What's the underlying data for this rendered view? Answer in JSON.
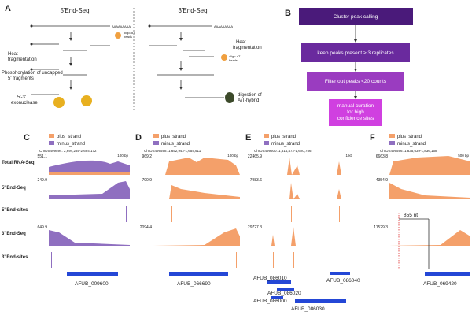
{
  "panel_a": {
    "letter": "A",
    "left_title": "5'End-Seq",
    "right_title": "3'End-Seq",
    "left_labels": [
      "Heat",
      "fragmentation",
      "Phosphorylation of uncapped",
      "5' fragments",
      "5'-3'",
      "exonuclease"
    ],
    "right_labels": [
      "Heat",
      "fragmentation",
      "oligo-dT",
      "beads",
      "digestion of",
      "A/T-hybrid"
    ],
    "bead_label": [
      "oligo-dT",
      "beads"
    ]
  },
  "panel_b": {
    "letter": "B",
    "steps": [
      "Cluster peak calling",
      "keep peaks present ≥ 3 replicates",
      "Filter out peaks <20 counts",
      [
        "manual curation",
        "for high",
        "confidence sites"
      ]
    ]
  },
  "row_labels": [
    "Total RNA-Seq",
    "5' End-Seq",
    "5' End-sites",
    "3' End-Seq",
    "3' End-sites"
  ],
  "legend": [
    "plus_strand",
    "minus_strand"
  ],
  "panels": [
    {
      "letter": "C",
      "coords": "ChrDS499594: 2,694,235-2,694,172",
      "scale": "100 bp",
      "ymax": [
        "551.1",
        "249.9",
        "649.9"
      ],
      "genes": [
        "AFUB_009600"
      ]
    },
    {
      "letter": "D",
      "coords": "ChrDS499598: 1,652,942-1,654,911",
      "scale": "100 bp",
      "ymax": [
        "969.2",
        "790.9",
        "2094.4"
      ],
      "genes": [
        "AFUB_066690"
      ]
    },
    {
      "letter": "E",
      "coords": "ChrDS499600: 1,614,472-1,620,756",
      "scale": "1 kb",
      "ymax": [
        "22465.9",
        "7983.6",
        "29727.3"
      ],
      "genes": [
        "AFUB_086040",
        "AFUB_086010",
        "AFUB_086020",
        "AFUB_086000",
        "AFUB_086030"
      ]
    },
    {
      "letter": "F",
      "coords": "ChrDS499596: 1,835,639-1,836,158",
      "scale": "500 bp",
      "ymax": [
        "6663.8",
        "4354.9",
        "11529.3"
      ],
      "genes": [
        "AFUB_069420"
      ],
      "distance": "855 nt"
    }
  ]
}
